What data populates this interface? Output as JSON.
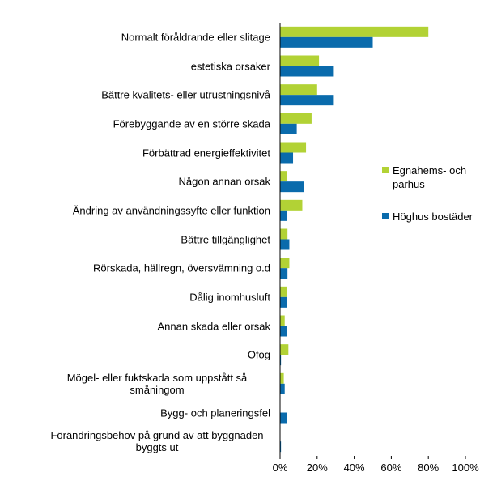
{
  "chart_data": {
    "type": "bar",
    "orientation": "horizontal",
    "categories": [
      "Normalt föråldrande eller slitage",
      "estetiska orsaker",
      "Bättre kvalitets- eller utrustningsnivå",
      "Förebyggande av en större skada",
      "Förbättrad energieffektivitet",
      "Någon annan orsak",
      "Ändring av användningssyfte eller funktion",
      "Bättre tillgänglighet",
      "Rörskada, hällregn, översvämning o.d",
      "Dålig inomhusluft",
      "Annan skada eller orsak",
      "Ofog",
      "Mögel- eller fuktskada som uppstått så småningom",
      "Bygg- och planeringsfel",
      "Förändringsbehov på grund av att byggnaden byggts ut"
    ],
    "series": [
      {
        "name": "Egnahems- och parhus",
        "color": "#b2d235",
        "values": [
          80,
          21,
          20,
          17,
          14,
          3.5,
          12,
          4,
          5,
          3.5,
          2.5,
          4.5,
          2,
          0,
          0
        ]
      },
      {
        "name": "Höghus bostäder",
        "color": "#0a6bac",
        "values": [
          50,
          29,
          29,
          9,
          7,
          13,
          3.5,
          5,
          4,
          3.5,
          3.5,
          0.5,
          2.5,
          3.5,
          0.5
        ]
      }
    ],
    "xlim": [
      0,
      100
    ],
    "xticks": [
      {
        "value": 0,
        "label": "0%"
      },
      {
        "value": 20,
        "label": "20%"
      },
      {
        "value": 40,
        "label": "40%"
      },
      {
        "value": 60,
        "label": "60%"
      },
      {
        "value": 80,
        "label": "80%"
      },
      {
        "value": 100,
        "label": "100%"
      }
    ],
    "grid": false,
    "legend": "right"
  }
}
